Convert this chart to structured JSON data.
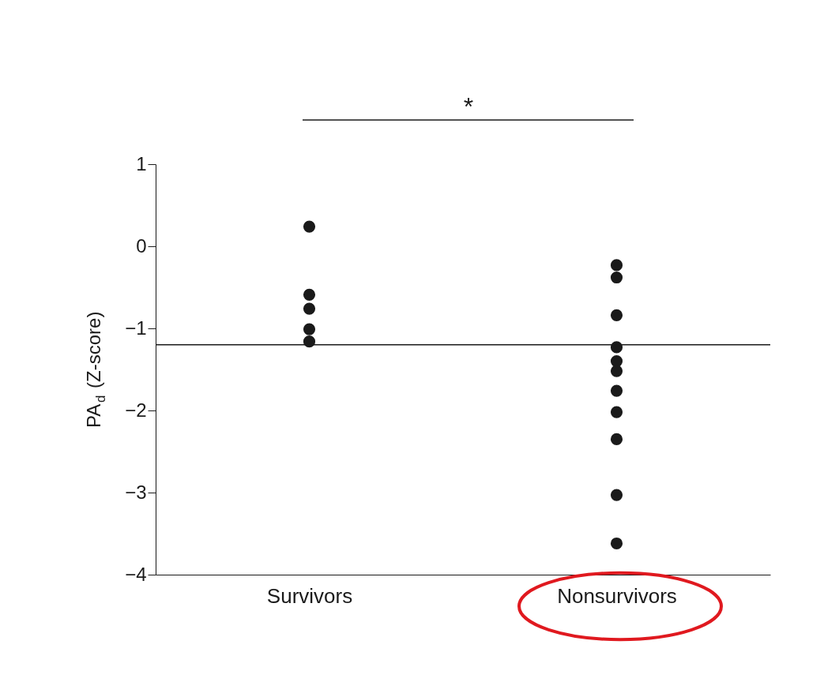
{
  "chart_data": {
    "type": "scatter",
    "ylabel": "PA$_{d}$ (Z-score)",
    "categories": [
      "Survivors",
      "Nonsurvivors"
    ],
    "series": [
      {
        "color": "#1a1a1a",
        "x": [
          "Survivors",
          "Survivors",
          "Survivors",
          "Survivors",
          "Survivors",
          "Nonsurvivors",
          "Nonsurvivors",
          "Nonsurvivors",
          "Nonsurvivors",
          "Nonsurvivors",
          "Nonsurvivors",
          "Nonsurvivors",
          "Nonsurvivors",
          "Nonsurvivors",
          "Nonsurvivors",
          "Nonsurvivors"
        ],
        "values": [
          0.24,
          -0.59,
          -0.76,
          -1.01,
          -1.16,
          -0.23,
          -0.38,
          -0.84,
          -1.23,
          -1.4,
          -1.52,
          -1.76,
          -2.02,
          -2.35,
          -3.03,
          -3.62
        ]
      }
    ],
    "ylim": [
      -4,
      1
    ],
    "yticks": [
      1,
      0,
      {
        "value": -1,
        "label": "−1"
      },
      {
        "value": -2,
        "label": "−2"
      },
      {
        "value": -3,
        "label": "−3"
      },
      {
        "value": -4,
        "label": "−4"
      }
    ],
    "ref_lines": [
      {
        "axis": "y",
        "value": -1.2,
        "color": "#1a1a1a"
      }
    ],
    "annotations": [
      "*"
    ],
    "marker": "circle",
    "grid": false,
    "legend": false
  }
}
